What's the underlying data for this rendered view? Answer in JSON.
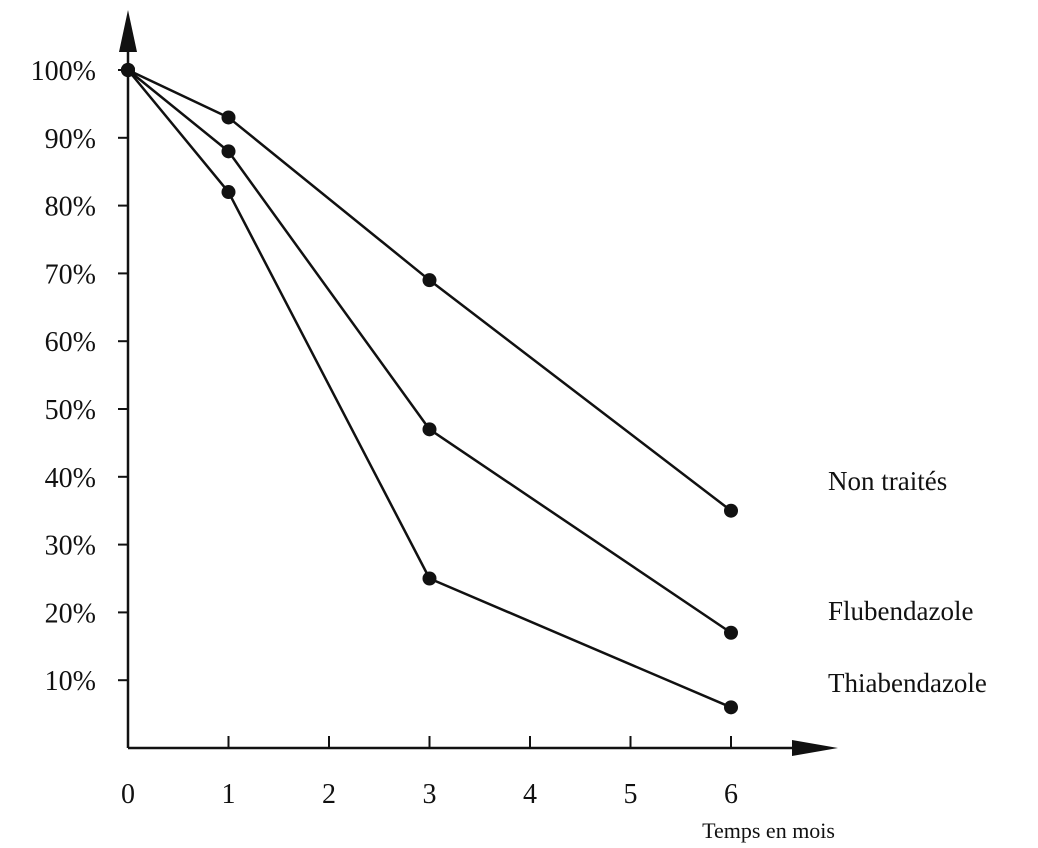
{
  "chart_data": {
    "type": "line",
    "x": [
      0,
      1,
      3,
      6
    ],
    "series": [
      {
        "name": "Non traités",
        "values": [
          100,
          93,
          69,
          35
        ]
      },
      {
        "name": "Flubendazole",
        "values": [
          100,
          88,
          47,
          17
        ]
      },
      {
        "name": "Thiabendazole",
        "values": [
          100,
          82,
          25,
          6
        ]
      }
    ],
    "x_ticks": [
      "0",
      "1",
      "2",
      "3",
      "4",
      "5",
      "6"
    ],
    "y_ticks": [
      "10%",
      "20%",
      "30%",
      "40%",
      "50%",
      "60%",
      "70%",
      "80%",
      "90%",
      "100%"
    ],
    "xlabel": "Temps en mois",
    "ylabel": "",
    "title": "",
    "xlim": [
      0,
      7
    ],
    "ylim": [
      0,
      110
    ],
    "grid": false,
    "legend": "right"
  },
  "colors": {
    "ink": "#111111",
    "background": "#ffffff"
  }
}
